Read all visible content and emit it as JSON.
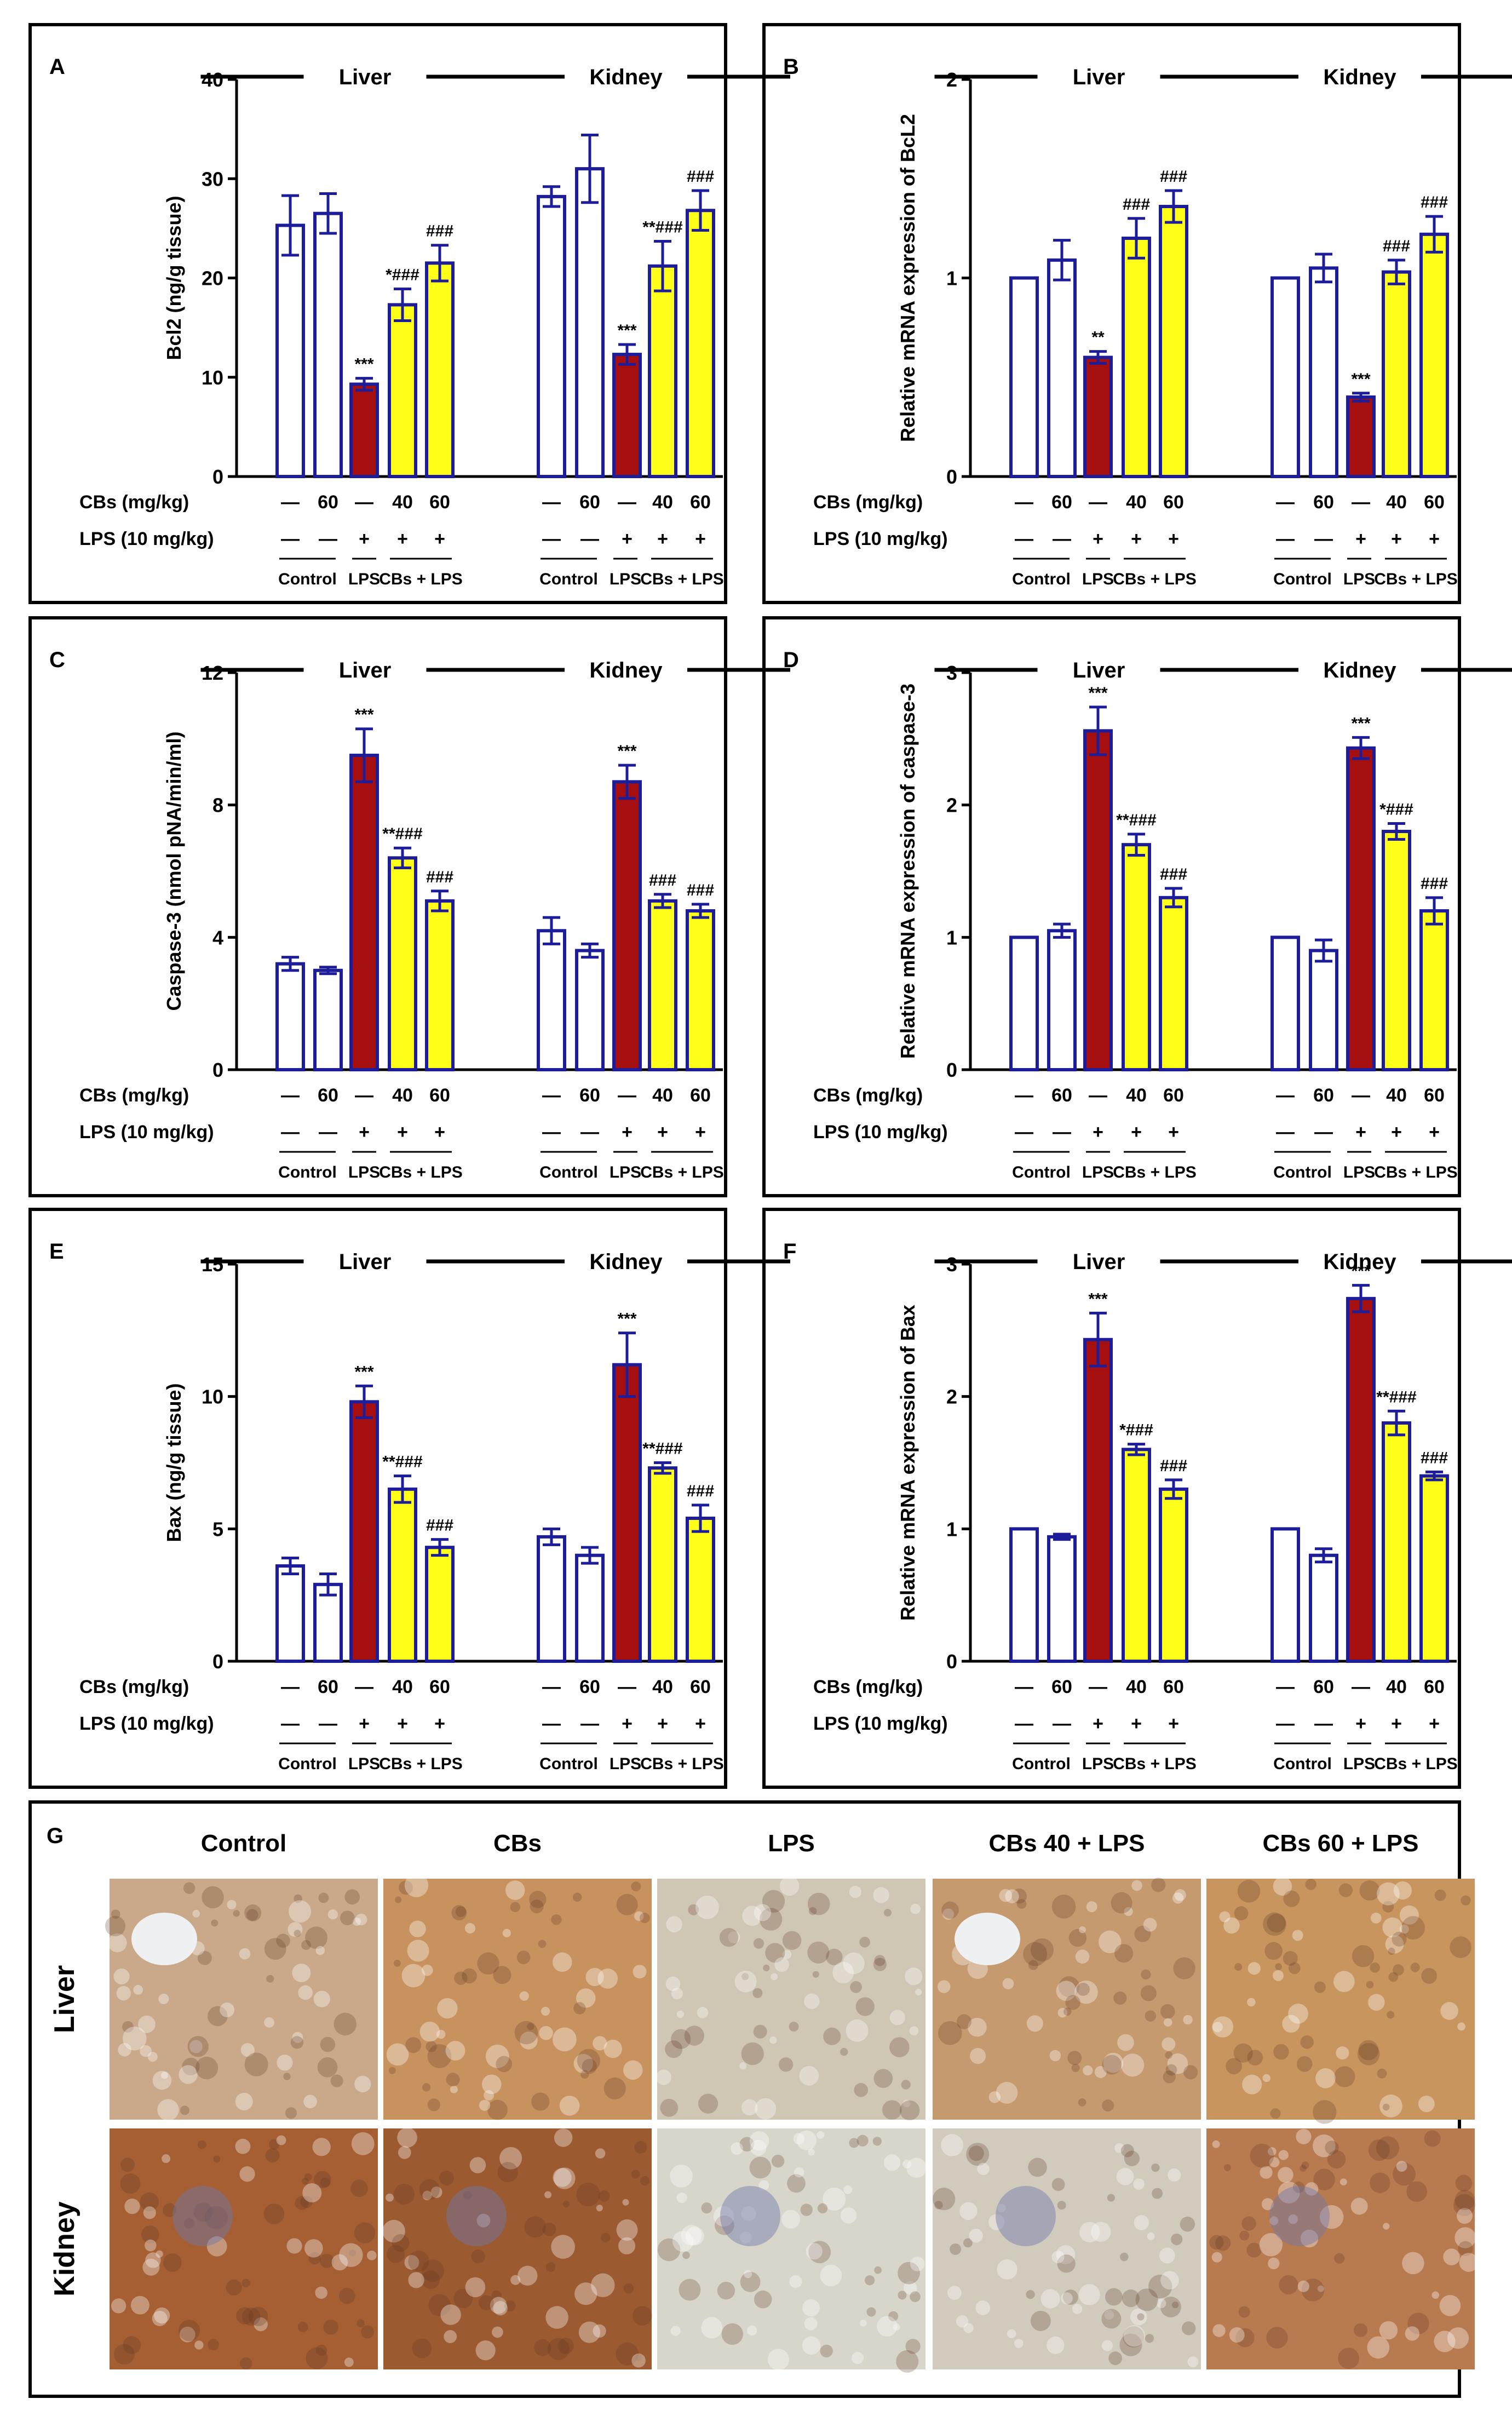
{
  "figure": {
    "panel_letters": [
      "A",
      "B",
      "C",
      "D",
      "E",
      "F",
      "G"
    ],
    "dash": "—",
    "plus": "+",
    "row_labels": {
      "cbs": "CBs (mg/kg)",
      "lps": "LPS (10 mg/kg)"
    },
    "cbs_doses": [
      "—",
      "60",
      "—",
      "40",
      "60"
    ],
    "lps_signs": [
      "—",
      "—",
      "+",
      "+",
      "+"
    ],
    "group_labels": [
      "Control",
      "LPS",
      "CBs + LPS"
    ],
    "organs": [
      "Liver",
      "Kidney"
    ],
    "colors": {
      "lps_bar": "#a50f0f",
      "cbs_bar": "#ffff1a",
      "outline": "#1d1d9a"
    }
  },
  "chart_data": [
    {
      "panel": "A",
      "type": "bar",
      "ylabel": "Bcl2 (ng/g tissue)",
      "yticks": [
        0,
        10,
        20,
        30,
        40
      ],
      "ylim": [
        0,
        40
      ],
      "series": [
        {
          "name": "Liver",
          "values": [
            25.3,
            26.5,
            9.3,
            17.3,
            21.5
          ],
          "errors": [
            3.0,
            2.0,
            0.6,
            1.6,
            1.8
          ],
          "labels": [
            "",
            "",
            "***",
            "*###",
            "###"
          ]
        },
        {
          "name": "Kidney",
          "values": [
            28.2,
            31.0,
            12.3,
            21.2,
            26.8
          ],
          "errors": [
            1.0,
            3.4,
            1.0,
            2.5,
            2.0
          ],
          "labels": [
            "",
            "",
            "***",
            "**###",
            "###"
          ]
        }
      ]
    },
    {
      "panel": "B",
      "type": "bar",
      "ylabel": "Relative mRNA expression of BcL2",
      "yticks": [
        0,
        1,
        2
      ],
      "ylim": [
        0,
        2
      ],
      "series": [
        {
          "name": "Liver",
          "values": [
            1.0,
            1.09,
            0.6,
            1.2,
            1.36
          ],
          "errors": [
            0,
            0.1,
            0.03,
            0.1,
            0.08
          ],
          "labels": [
            "",
            "",
            "**",
            "###",
            "###"
          ]
        },
        {
          "name": "Kidney",
          "values": [
            1.0,
            1.05,
            0.4,
            1.03,
            1.22
          ],
          "errors": [
            0,
            0.07,
            0.02,
            0.06,
            0.09
          ],
          "labels": [
            "",
            "",
            "***",
            "###",
            "###"
          ]
        }
      ]
    },
    {
      "panel": "C",
      "type": "bar",
      "ylabel": "Caspase-3 (nmol pNA/min/ml)",
      "yticks": [
        0,
        4,
        8,
        12
      ],
      "ylim": [
        0,
        12
      ],
      "series": [
        {
          "name": "Liver",
          "values": [
            3.2,
            3.0,
            9.5,
            6.4,
            5.1
          ],
          "errors": [
            0.2,
            0.1,
            0.8,
            0.3,
            0.3
          ],
          "labels": [
            "",
            "",
            "***",
            "**###",
            "###"
          ]
        },
        {
          "name": "Kidney",
          "values": [
            4.2,
            3.6,
            8.7,
            5.1,
            4.8
          ],
          "errors": [
            0.4,
            0.2,
            0.5,
            0.2,
            0.2
          ],
          "labels": [
            "",
            "",
            "***",
            "###",
            "###"
          ]
        }
      ]
    },
    {
      "panel": "D",
      "type": "bar",
      "ylabel": "Relative mRNA expression of caspase-3",
      "yticks": [
        0,
        1,
        2,
        3
      ],
      "ylim": [
        0,
        3
      ],
      "series": [
        {
          "name": "Liver",
          "values": [
            1.0,
            1.05,
            2.56,
            1.7,
            1.3
          ],
          "errors": [
            0,
            0.05,
            0.18,
            0.08,
            0.07
          ],
          "labels": [
            "",
            "",
            "***",
            "**###",
            "###"
          ]
        },
        {
          "name": "Kidney",
          "values": [
            1.0,
            0.9,
            2.43,
            1.8,
            1.2
          ],
          "errors": [
            0,
            0.08,
            0.08,
            0.06,
            0.1
          ],
          "labels": [
            "",
            "",
            "***",
            "*###",
            "###"
          ]
        }
      ]
    },
    {
      "panel": "E",
      "type": "bar",
      "ylabel": "Bax (ng/g tissue)",
      "yticks": [
        0,
        5,
        10,
        15
      ],
      "ylim": [
        0,
        15
      ],
      "series": [
        {
          "name": "Liver",
          "values": [
            3.6,
            2.9,
            9.8,
            6.5,
            4.3
          ],
          "errors": [
            0.3,
            0.4,
            0.6,
            0.5,
            0.3
          ],
          "labels": [
            "",
            "",
            "***",
            "**###",
            "###"
          ]
        },
        {
          "name": "Kidney",
          "values": [
            4.7,
            4.0,
            11.2,
            7.3,
            5.4
          ],
          "errors": [
            0.3,
            0.3,
            1.2,
            0.2,
            0.5
          ],
          "labels": [
            "",
            "",
            "***",
            "**###",
            "###"
          ]
        }
      ]
    },
    {
      "panel": "F",
      "type": "bar",
      "ylabel": "Relative mRNA expression of Bax",
      "yticks": [
        0,
        1,
        2,
        3
      ],
      "ylim": [
        0,
        3
      ],
      "series": [
        {
          "name": "Liver",
          "values": [
            1.0,
            0.94,
            2.43,
            1.6,
            1.3
          ],
          "errors": [
            0,
            0.02,
            0.2,
            0.04,
            0.07
          ],
          "labels": [
            "",
            "",
            "***",
            "*###",
            "###"
          ]
        },
        {
          "name": "Kidney",
          "values": [
            1.0,
            0.8,
            2.74,
            1.8,
            1.4
          ],
          "errors": [
            0,
            0.05,
            0.1,
            0.09,
            0.03
          ],
          "labels": [
            "",
            "",
            "***",
            "**###",
            "###"
          ]
        }
      ]
    }
  ],
  "panel_g": {
    "columns": [
      "Control",
      "CBs",
      "LPS",
      "CBs 40 + LPS",
      "CBs 60 + LPS"
    ],
    "rows": [
      "Liver",
      "Kidney"
    ],
    "stain_colors": [
      [
        "#c9a98a",
        "#c8925f",
        "#cfc7b4",
        "#c69a6f",
        "#c9955e"
      ],
      [
        "#a55f33",
        "#9c5a31",
        "#d8d6cb",
        "#d1cbbd",
        "#b87a4f"
      ]
    ]
  }
}
